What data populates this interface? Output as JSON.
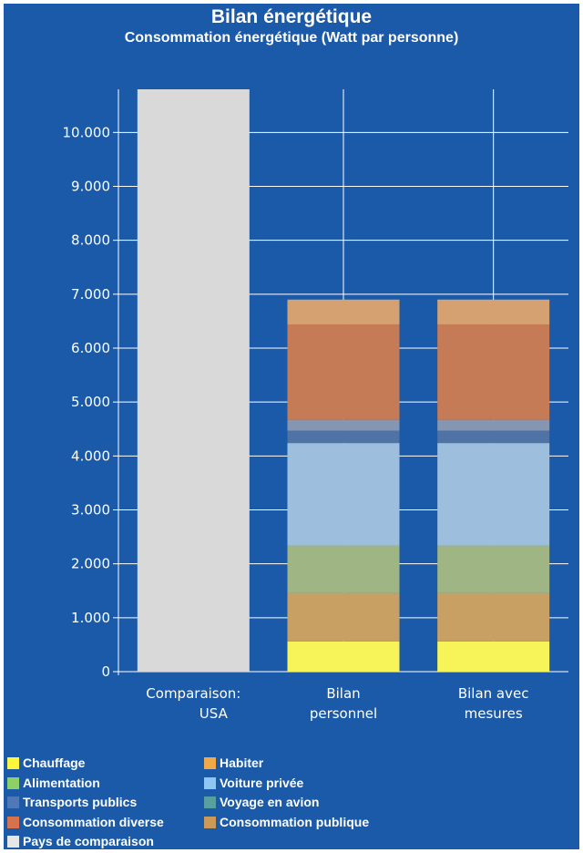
{
  "chart_data": {
    "type": "bar",
    "stacked": true,
    "title": "Bilan énergétique",
    "subtitle": "Consommation énergétique (Watt par personne)",
    "categories": [
      "Comparaison:\nUSA",
      "Bilan\npersonnel",
      "Bilan avec\nmesures"
    ],
    "ylim": [
      0,
      10800
    ],
    "yticks": [
      0,
      1000,
      2000,
      3000,
      4000,
      5000,
      6000,
      7000,
      8000,
      9000,
      10000
    ],
    "ytick_labels": [
      "0",
      "1.000",
      "2.000",
      "3.000",
      "4.000",
      "5.000",
      "6.000",
      "7.000",
      "8.000",
      "9.000",
      "10.000"
    ],
    "grid": true,
    "legend_position": "bottom",
    "series": [
      {
        "name": "Chauffage",
        "color": "#f7f45a",
        "values": [
          0,
          560,
          560
        ]
      },
      {
        "name": "Habiter",
        "color": "#c9a064",
        "values": [
          0,
          900,
          900
        ]
      },
      {
        "name": "Alimentation",
        "color": "#9fb684",
        "values": [
          0,
          880,
          880
        ]
      },
      {
        "name": "Voiture privée",
        "color": "#9ebedd",
        "values": [
          0,
          1900,
          1900
        ]
      },
      {
        "name": "Transports publics",
        "color": "#4f73a4",
        "values": [
          0,
          230,
          230
        ]
      },
      {
        "name": "Voyage en avion",
        "color": "#8496b2",
        "values": [
          0,
          200,
          200
        ]
      },
      {
        "name": "Consommation diverse",
        "color": "#c57b56",
        "values": [
          0,
          1770,
          1770
        ]
      },
      {
        "name": "Consommation publique",
        "color": "#d5a171",
        "values": [
          0,
          460,
          460
        ]
      },
      {
        "name": "Pays de comparaison",
        "color": "#d9d9d9",
        "values": [
          10800,
          0,
          0
        ]
      }
    ]
  },
  "legend": {
    "items": [
      {
        "label": "Chauffage",
        "color": "#fdf63c"
      },
      {
        "label": "Habiter",
        "color": "#f0a848"
      },
      {
        "label": "Alimentation",
        "color": "#8dd066"
      },
      {
        "label": "Voiture privée",
        "color": "#8fc6f2"
      },
      {
        "label": "Transports publics",
        "color": "#4f78b8"
      },
      {
        "label": "Voyage en avion",
        "color": "#58a0a0"
      },
      {
        "label": "Consommation diverse",
        "color": "#d6724c"
      },
      {
        "label": "Consommation publique",
        "color": "#c99a58"
      },
      {
        "label": "Pays de comparaison",
        "color": "#e6e6e6"
      }
    ]
  }
}
